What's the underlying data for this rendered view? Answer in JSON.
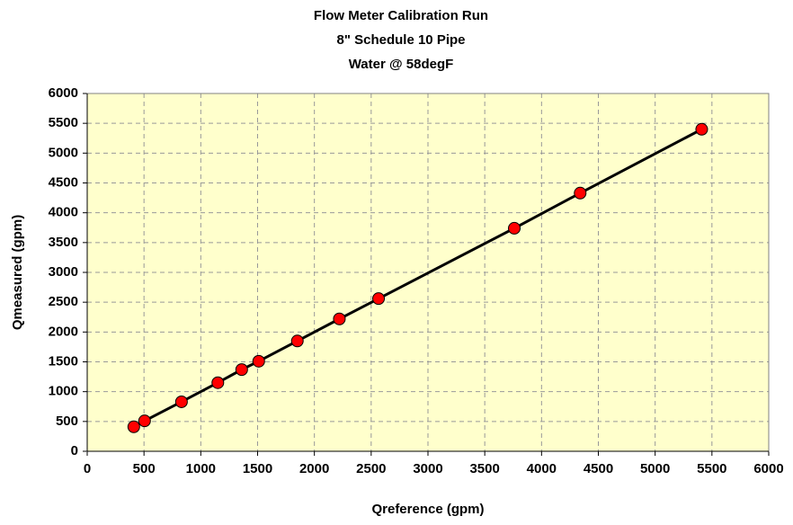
{
  "chart_data": {
    "type": "scatter",
    "title": [
      "Flow Meter Calibration Run",
      "8\" Schedule 10 Pipe",
      "Water @ 58degF"
    ],
    "x_label": "Qreference (gpm)",
    "y_label": "Qmeasured (gpm)",
    "x": [
      410,
      505,
      830,
      1150,
      1360,
      1510,
      1850,
      2220,
      2565,
      3760,
      4340,
      5410
    ],
    "values": [
      410,
      510,
      830,
      1150,
      1370,
      1510,
      1850,
      2220,
      2560,
      3740,
      4330,
      5400
    ],
    "color": "#ff0000",
    "line": true,
    "line_color": "#000000",
    "xlim": [
      0,
      6000
    ],
    "ylim": [
      0,
      6000
    ],
    "xticks": [
      0,
      500,
      1000,
      1500,
      2000,
      2500,
      3000,
      3500,
      4000,
      4500,
      5000,
      5500,
      6000
    ],
    "yticks": [
      0,
      500,
      1000,
      1500,
      2000,
      2500,
      3000,
      3500,
      4000,
      4500,
      5000,
      5500,
      6000
    ],
    "grid": true,
    "background": "#ffffcc"
  }
}
